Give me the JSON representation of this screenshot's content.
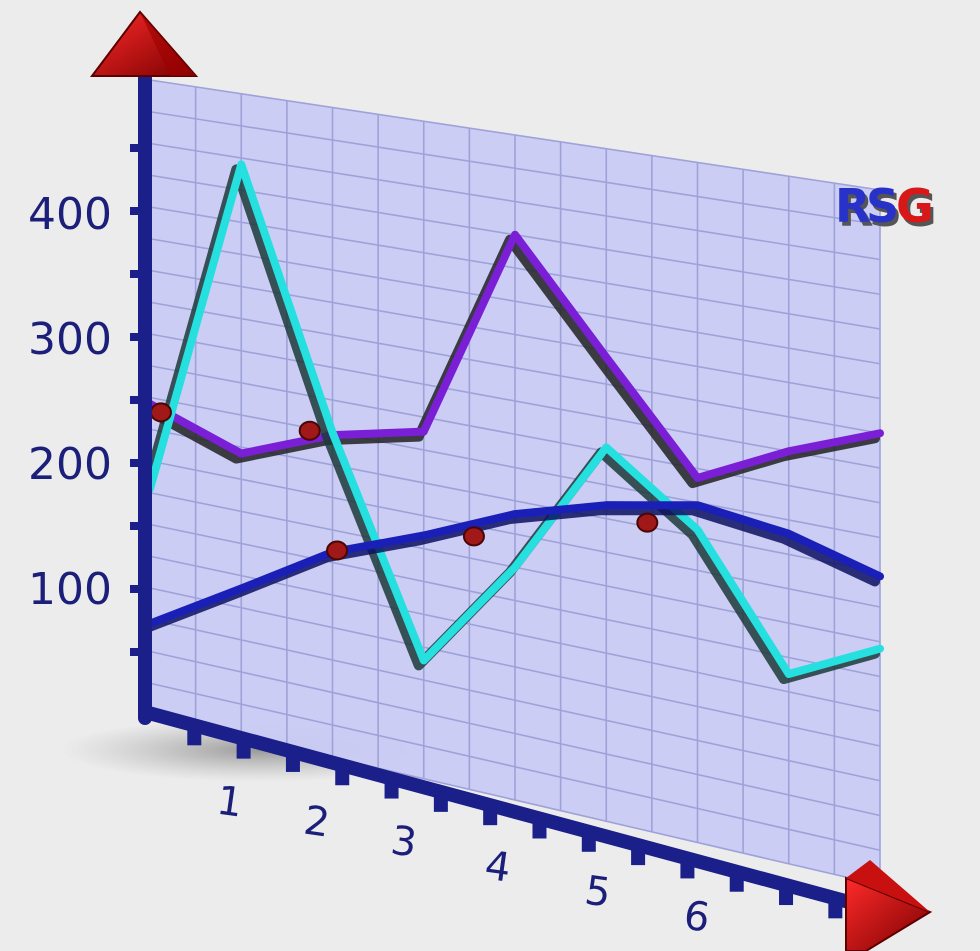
{
  "chart_data": {
    "type": "line",
    "title": "",
    "xlabel": "",
    "ylabel": "",
    "x": [
      0,
      1,
      2,
      3,
      4,
      5,
      6,
      7,
      8
    ],
    "x_tick_labels": [
      "1",
      "2",
      "3",
      "4",
      "5",
      "6"
    ],
    "y_tick_labels": [
      "100",
      "200",
      "300",
      "400"
    ],
    "ylim": [
      0,
      500
    ],
    "grid": true,
    "series": [
      {
        "color": "#7a1fd6",
        "shadow": "#222222",
        "values": [
          245,
          220,
          248,
          264,
          425,
          345,
          268,
          300,
          325
        ]
      },
      {
        "color": "#26e0e0",
        "shadow": "#1c3a3a",
        "values": [
          178,
          445,
          250,
          90,
          175,
          278,
          230,
          138,
          170
        ]
      },
      {
        "color": "#1a1fb8",
        "shadow": "#0d1060",
        "values": [
          72,
          115,
          158,
          185,
          215,
          235,
          248,
          240,
          222
        ]
      }
    ],
    "intersections": [
      {
        "x": 0.12,
        "y": 240
      },
      {
        "x": 1.75,
        "y": 248
      },
      {
        "x": 2.05,
        "y": 160
      },
      {
        "x": 3.55,
        "y": 192
      },
      {
        "x": 5.45,
        "y": 228
      }
    ],
    "accent_color": "#e01010",
    "plane_color": "#c9cbf5",
    "axis_color": "#1a1f8a",
    "logo": {
      "text": "RSG",
      "colors": [
        "#2832c8",
        "#2832c8",
        "#d81818"
      ]
    }
  }
}
